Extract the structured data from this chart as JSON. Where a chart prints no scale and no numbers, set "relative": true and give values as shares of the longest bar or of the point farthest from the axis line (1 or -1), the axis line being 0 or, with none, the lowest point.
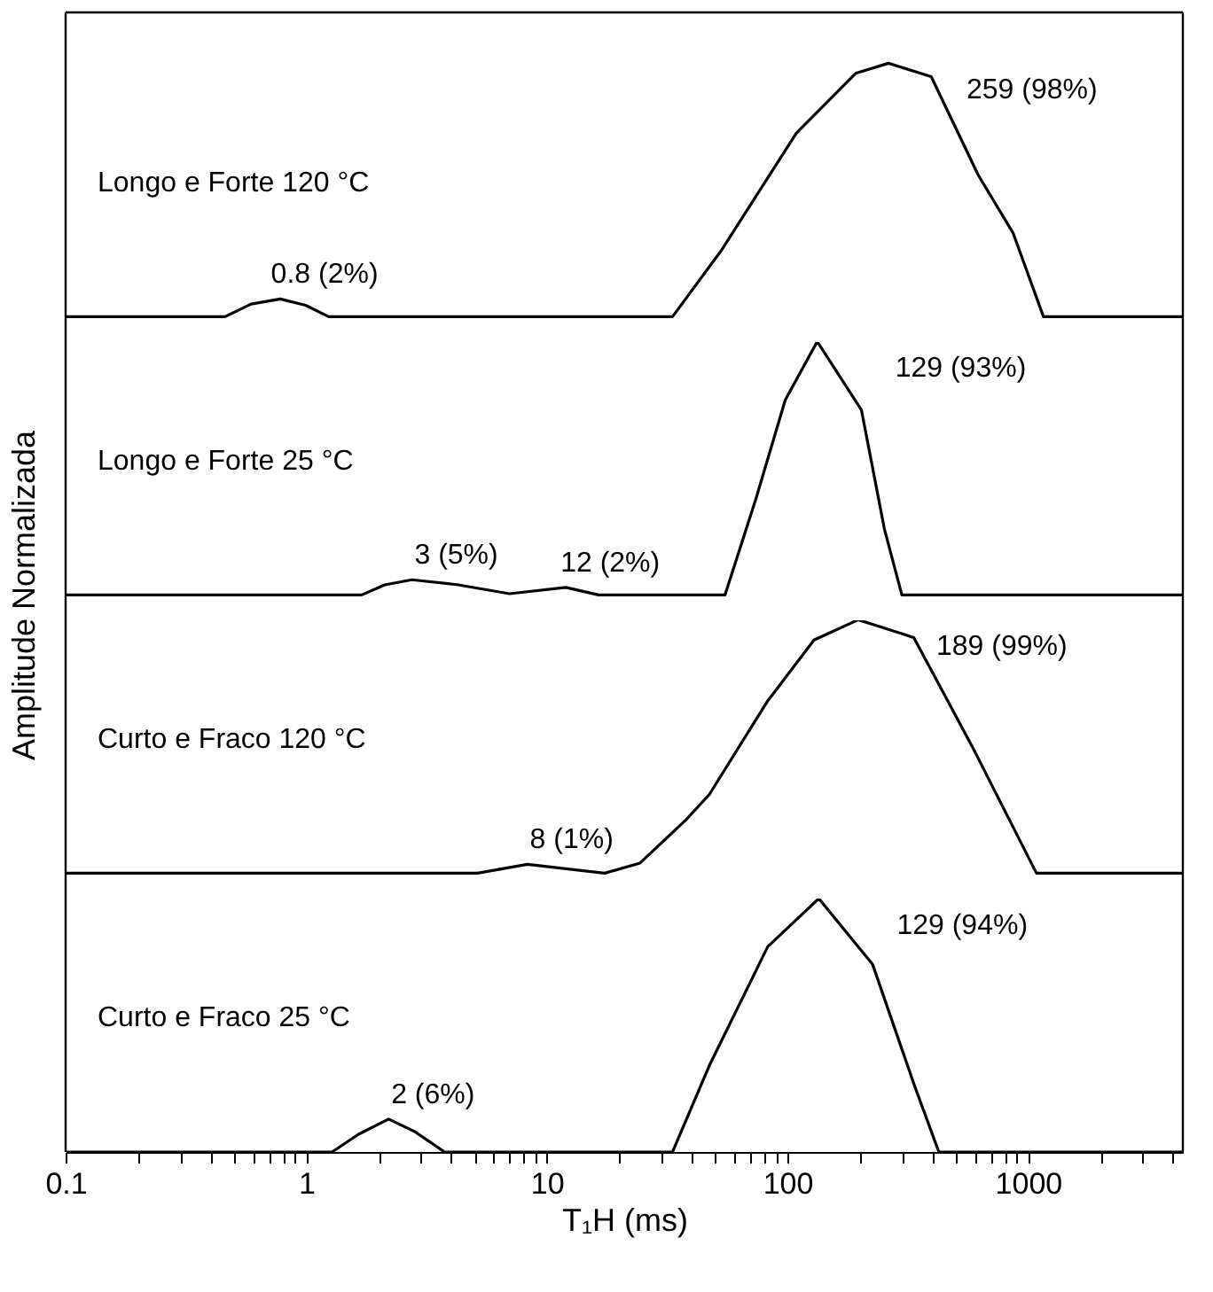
{
  "chart_data": [
    {
      "type": "line",
      "relative": true,
      "log": "x",
      "tick_labels": false,
      "xlim": [
        0.1,
        4400
      ],
      "x": [
        0.1,
        0.46,
        0.59,
        0.78,
        0.995,
        1.24,
        33.3,
        53,
        109,
        192,
        263,
        396,
        620,
        867,
        1159,
        4400
      ],
      "series": [
        {
          "color": "#000000",
          "values": [
            0,
            0,
            0.05,
            0.07,
            0.045,
            0,
            0,
            0.26,
            0.725,
            0.96,
            1.0,
            0.947,
            0.56,
            0.33,
            0,
            0
          ]
        }
      ],
      "annotations": [
        "Longo e Forte 120 °C",
        {
          "text": "0.8 (2%)",
          "x": 0.78,
          "y": 0.07
        },
        {
          "text": "259 (98%)",
          "x": 263,
          "y": 1.0
        }
      ]
    },
    {
      "type": "line",
      "relative": true,
      "log": "x",
      "tick_labels": false,
      "ylabel": "Amplitude Normalizada",
      "xlim": [
        0.1,
        4400
      ],
      "x": [
        0.1,
        1.7,
        2.12,
        2.75,
        4.28,
        7.0,
        12.0,
        16.4,
        55,
        74,
        98,
        133,
        203,
        253,
        299,
        4400
      ],
      "series": [
        {
          "color": "#000000",
          "values": [
            0,
            0,
            0.04,
            0.06,
            0.04,
            0.005,
            0.03,
            0,
            0,
            0.38,
            0.77,
            1.0,
            0.73,
            0.26,
            0,
            0
          ]
        }
      ],
      "annotations": [
        "Longo e Forte 25 °C",
        {
          "text": "3 (5%)",
          "x": 2.75,
          "y": 0.06
        },
        {
          "text": "12 (2%)",
          "x": 12.0,
          "y": 0.03
        },
        {
          "text": "129 (93%)",
          "x": 133,
          "y": 1.0
        }
      ]
    },
    {
      "type": "line",
      "relative": true,
      "log": "x",
      "tick_labels": false,
      "xlim": [
        0.1,
        4400
      ],
      "x": [
        0.1,
        5.15,
        8.3,
        17.4,
        24.4,
        37.8,
        47.3,
        82.8,
        129,
        197,
        335,
        586,
        1084,
        4400
      ],
      "series": [
        {
          "color": "#000000",
          "values": [
            0,
            0,
            0.035,
            0,
            0.04,
            0.21,
            0.31,
            0.68,
            0.92,
            1.0,
            0.93,
            0.5,
            0,
            0
          ]
        }
      ],
      "annotations": [
        "Curto e Fraco 120 °C",
        {
          "text": "8 (1%)",
          "x": 8.3,
          "y": 0.035
        },
        {
          "text": "189 (99%)",
          "x": 197,
          "y": 1.0
        }
      ]
    },
    {
      "type": "line",
      "relative": true,
      "log": "x",
      "tick_labels": "x",
      "xlim": [
        0.1,
        4400
      ],
      "xlabel": "T₁H (ms)",
      "xticks": [
        0.1,
        {
          "value": 0.2,
          "label": null
        },
        {
          "value": 0.3,
          "label": null
        },
        {
          "value": 0.4,
          "label": null
        },
        {
          "value": 0.5,
          "label": null
        },
        {
          "value": 0.6,
          "label": null
        },
        {
          "value": 0.7,
          "label": null
        },
        {
          "value": 0.8,
          "label": null
        },
        {
          "value": 0.9,
          "label": null
        },
        1,
        {
          "value": 2,
          "label": null
        },
        {
          "value": 3,
          "label": null
        },
        {
          "value": 4,
          "label": null
        },
        {
          "value": 5,
          "label": null
        },
        {
          "value": 6,
          "label": null
        },
        {
          "value": 7,
          "label": null
        },
        {
          "value": 8,
          "label": null
        },
        {
          "value": 9,
          "label": null
        },
        10,
        {
          "value": 20,
          "label": null
        },
        {
          "value": 30,
          "label": null
        },
        {
          "value": 40,
          "label": null
        },
        {
          "value": 50,
          "label": null
        },
        {
          "value": 60,
          "label": null
        },
        {
          "value": 70,
          "label": null
        },
        {
          "value": 80,
          "label": null
        },
        {
          "value": 90,
          "label": null
        },
        100,
        {
          "value": 200,
          "label": null
        },
        {
          "value": 300,
          "label": null
        },
        {
          "value": 400,
          "label": null
        },
        {
          "value": 500,
          "label": null
        },
        {
          "value": 600,
          "label": null
        },
        {
          "value": 700,
          "label": null
        },
        {
          "value": 800,
          "label": null
        },
        {
          "value": 900,
          "label": null
        },
        1000,
        {
          "value": 2000,
          "label": null
        },
        {
          "value": 3000,
          "label": null
        },
        {
          "value": 4000,
          "label": null
        }
      ],
      "x": [
        0.1,
        1.28,
        1.65,
        2.2,
        2.83,
        3.76,
        33.3,
        47.3,
        82.8,
        135,
        226,
        335,
        426,
        4400
      ],
      "series": [
        {
          "color": "#000000",
          "values": [
            0,
            0,
            0.07,
            0.13,
            0.08,
            0,
            0,
            0.34,
            0.81,
            1.0,
            0.74,
            0.27,
            0,
            0
          ]
        }
      ],
      "annotations": [
        "Curto e Fraco 25 °C",
        {
          "text": "2 (6%)",
          "x": 2.2,
          "y": 0.13
        },
        {
          "text": "129 (94%)",
          "x": 135,
          "y": 1.0
        }
      ]
    }
  ]
}
